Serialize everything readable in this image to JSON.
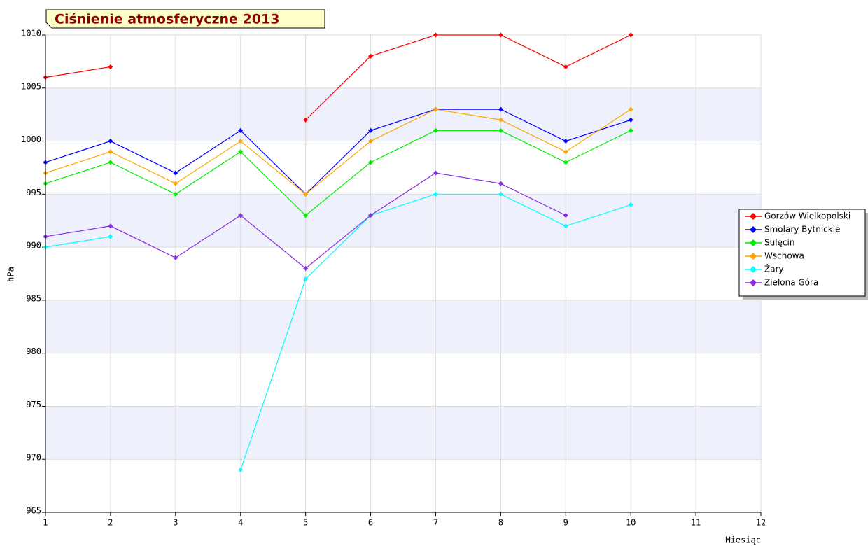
{
  "chart_data": {
    "type": "line",
    "title": "Ciśnienie atmosferyczne 2013",
    "xlabel": "Miesiąc",
    "ylabel": "hPa",
    "x": [
      1,
      2,
      3,
      4,
      5,
      6,
      7,
      8,
      9,
      10
    ],
    "series": [
      {
        "name": "Gorzów Wielkopolski",
        "color": "#ff0000",
        "values": [
          1006,
          1007,
          null,
          null,
          1002,
          1008,
          1010,
          1010,
          1007,
          1010
        ]
      },
      {
        "name": "Smolary Bytnickie",
        "color": "#0000ff",
        "values": [
          998,
          1000,
          997,
          1001,
          995,
          1001,
          1003,
          1003,
          1000,
          1002
        ]
      },
      {
        "name": "Sulęcin",
        "color": "#00ee00",
        "values": [
          996,
          998,
          995,
          999,
          993,
          998,
          1001,
          1001,
          998,
          1001
        ]
      },
      {
        "name": "Wschowa",
        "color": "#ffa500",
        "values": [
          997,
          999,
          996,
          1000,
          995,
          1000,
          1003,
          1002,
          999,
          1003
        ]
      },
      {
        "name": "Żary",
        "color": "#00ffff",
        "values": [
          990,
          991,
          null,
          969,
          987,
          993,
          995,
          995,
          992,
          994
        ]
      },
      {
        "name": "Zielona Góra",
        "color": "#8a2be2",
        "values": [
          991,
          992,
          989,
          993,
          988,
          993,
          997,
          996,
          993,
          null
        ]
      }
    ],
    "xlim": [
      1,
      12
    ],
    "xticks": [
      1,
      2,
      3,
      4,
      5,
      6,
      7,
      8,
      9,
      10,
      11,
      12
    ],
    "ylim": [
      965,
      1010
    ],
    "yticks": [
      965,
      970,
      975,
      980,
      985,
      990,
      995,
      1000,
      1005,
      1010
    ],
    "grid": true,
    "legend": "right"
  }
}
